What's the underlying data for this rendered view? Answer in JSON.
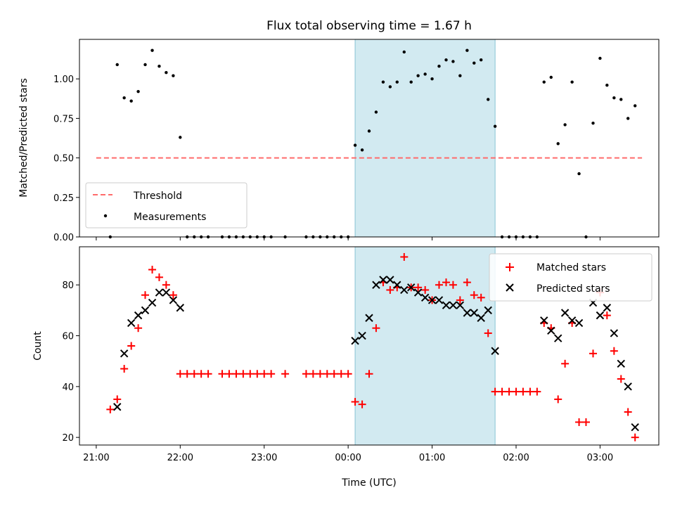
{
  "figure": {
    "title": "Flux total observing time = 1.67 h",
    "shaded_span": {
      "start_hour": 24.083,
      "end_hour": 25.75,
      "color": "#add8e6"
    }
  },
  "chart_data": [
    {
      "type": "scatter",
      "panel": "top",
      "ylabel": "Matched/Predicted stars",
      "ylim": [
        0,
        1.25
      ],
      "yticks": [
        "0.00",
        "0.25",
        "0.50",
        "0.75",
        "1.00"
      ],
      "threshold": {
        "name": "Threshold",
        "y": 0.5,
        "x": [
          21.0,
          27.5
        ],
        "color": "#ff6b6b"
      },
      "measurements": {
        "name": "Measurements",
        "color": "#000000",
        "x": [
          21.167,
          21.25,
          21.333,
          21.417,
          21.5,
          21.583,
          21.667,
          21.75,
          21.833,
          21.917,
          22.0,
          22.083,
          22.167,
          22.25,
          22.333,
          22.5,
          22.583,
          22.667,
          22.75,
          22.833,
          22.917,
          23.0,
          23.083,
          23.25,
          23.5,
          23.583,
          23.667,
          23.75,
          23.833,
          23.917,
          24.0,
          24.083,
          24.167,
          24.25,
          24.333,
          24.417,
          24.5,
          24.583,
          24.667,
          24.75,
          24.833,
          24.917,
          25.0,
          25.083,
          25.167,
          25.25,
          25.333,
          25.417,
          25.5,
          25.583,
          25.667,
          25.75,
          25.833,
          25.917,
          26.0,
          26.083,
          26.167,
          26.25,
          26.333,
          26.417,
          26.5,
          26.583,
          26.667,
          26.75,
          26.833,
          26.917,
          27.0,
          27.083,
          27.167,
          27.25,
          27.333,
          27.417
        ],
        "y": [
          0.0,
          1.09,
          0.88,
          0.86,
          0.92,
          1.09,
          1.18,
          1.08,
          1.04,
          1.02,
          0.63,
          0.0,
          0.0,
          0.0,
          0.0,
          0.0,
          0.0,
          0.0,
          0.0,
          0.0,
          0.0,
          0.0,
          0.0,
          0.0,
          0.0,
          0.0,
          0.0,
          0.0,
          0.0,
          0.0,
          0.0,
          0.58,
          0.55,
          0.67,
          0.79,
          0.98,
          0.95,
          0.98,
          1.17,
          0.98,
          1.02,
          1.03,
          1.0,
          1.08,
          1.12,
          1.11,
          1.02,
          1.18,
          1.1,
          1.12,
          0.87,
          0.7,
          0.0,
          0.0,
          0.0,
          0.0,
          0.0,
          0.0,
          0.98,
          1.01,
          0.59,
          0.71,
          0.98,
          0.4,
          0.0,
          0.72,
          1.13,
          0.96,
          0.88,
          0.87,
          0.75,
          0.83
        ]
      },
      "legend": {
        "location": "lower-left",
        "entries": [
          "Threshold",
          "Measurements"
        ]
      }
    },
    {
      "type": "scatter",
      "panel": "bottom",
      "ylabel": "Count",
      "xlabel": "Time (UTC)",
      "ylim": [
        17,
        95
      ],
      "yticks": [
        "20",
        "40",
        "60",
        "80"
      ],
      "xlim": [
        20.8,
        27.7
      ],
      "xticks": [
        "21:00",
        "22:00",
        "23:00",
        "00:00",
        "01:00",
        "02:00",
        "03:00"
      ],
      "series": [
        {
          "name": "Matched stars",
          "marker": "+",
          "color": "#ff0000",
          "x": [
            21.167,
            21.25,
            21.333,
            21.417,
            21.5,
            21.583,
            21.667,
            21.75,
            21.833,
            21.917,
            22.0,
            22.083,
            22.167,
            22.25,
            22.333,
            22.5,
            22.583,
            22.667,
            22.75,
            22.833,
            22.917,
            23.0,
            23.083,
            23.25,
            23.5,
            23.583,
            23.667,
            23.75,
            23.833,
            23.917,
            24.0,
            24.083,
            24.167,
            24.25,
            24.333,
            24.417,
            24.5,
            24.583,
            24.667,
            24.75,
            24.833,
            24.917,
            25.0,
            25.083,
            25.167,
            25.25,
            25.333,
            25.417,
            25.5,
            25.583,
            25.667,
            25.75,
            25.833,
            25.917,
            26.0,
            26.083,
            26.167,
            26.25,
            26.333,
            26.417,
            26.5,
            26.583,
            26.667,
            26.75,
            26.833,
            26.917,
            27.0,
            27.083,
            27.167,
            27.25,
            27.333,
            27.417
          ],
          "y": [
            31,
            35,
            47,
            56,
            63,
            76,
            86,
            83,
            80,
            76,
            45,
            45,
            45,
            45,
            45,
            45,
            45,
            45,
            45,
            45,
            45,
            45,
            45,
            45,
            45,
            45,
            45,
            45,
            45,
            45,
            45,
            34,
            33,
            45,
            63,
            81,
            78,
            79,
            91,
            79,
            79,
            78,
            74,
            80,
            81,
            80,
            74,
            81,
            76,
            75,
            61,
            38,
            38,
            38,
            38,
            38,
            38,
            38,
            65,
            63,
            35,
            49,
            65,
            26,
            26,
            53,
            77,
            68,
            54,
            43,
            30,
            20
          ]
        },
        {
          "name": "Predicted stars",
          "marker": "x",
          "color": "#000000",
          "x": [
            21.25,
            21.333,
            21.417,
            21.5,
            21.583,
            21.667,
            21.75,
            21.833,
            21.917,
            22.0,
            24.083,
            24.167,
            24.25,
            24.333,
            24.417,
            24.5,
            24.583,
            24.667,
            24.75,
            24.833,
            24.917,
            25.0,
            25.083,
            25.167,
            25.25,
            25.333,
            25.417,
            25.5,
            25.583,
            25.667,
            25.75,
            26.333,
            26.417,
            26.5,
            26.583,
            26.667,
            26.75,
            26.917,
            27.0,
            27.083,
            27.167,
            27.25,
            27.333,
            27.417
          ],
          "y": [
            32,
            53,
            65,
            68,
            70,
            73,
            77,
            77,
            74,
            71,
            58,
            60,
            67,
            80,
            82,
            82,
            80,
            78,
            79,
            77,
            75,
            74,
            74,
            72,
            72,
            72,
            69,
            69,
            67,
            70,
            54,
            66,
            62,
            59,
            69,
            66,
            65,
            73,
            68,
            71,
            61,
            49,
            40,
            24
          ]
        }
      ],
      "legend": {
        "location": "top-right",
        "entries": [
          "Matched stars",
          "Predicted stars"
        ]
      }
    }
  ]
}
